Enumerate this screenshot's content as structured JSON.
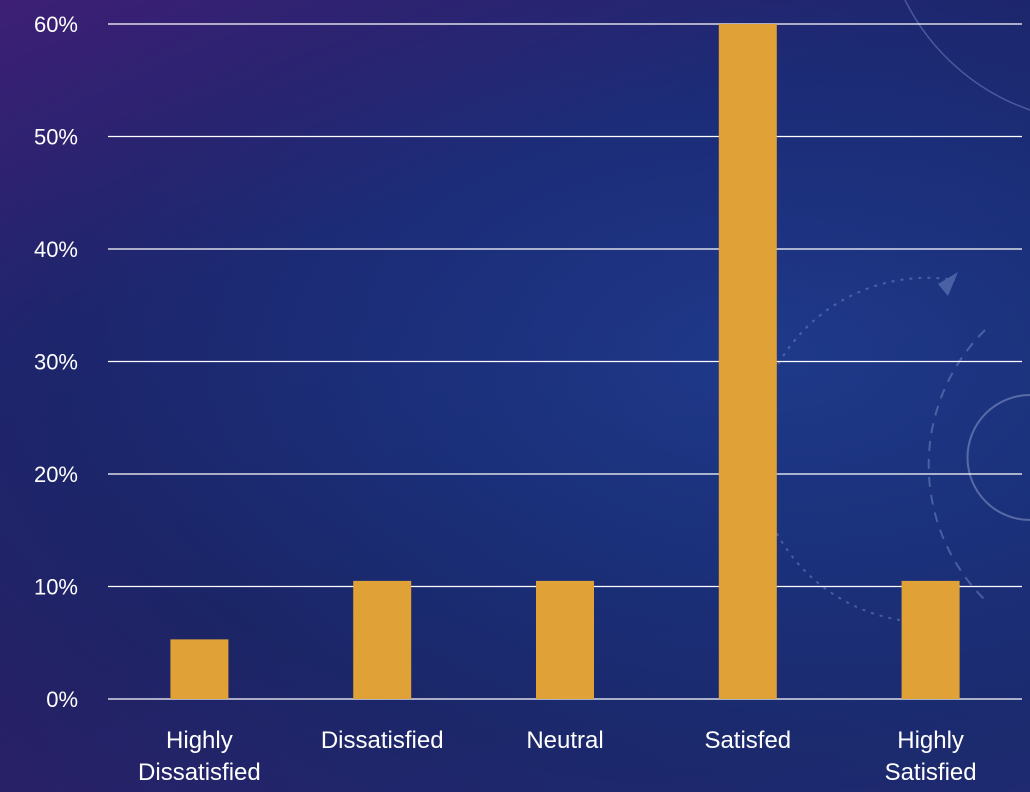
{
  "chart_data": {
    "type": "bar",
    "title": "",
    "xlabel": "",
    "ylabel": "",
    "categories": [
      [
        "Highly",
        "Dissatisfied"
      ],
      [
        "Dissatisfied"
      ],
      [
        "Neutral"
      ],
      [
        "Satisfed"
      ],
      [
        "Highly",
        "Satisfied"
      ]
    ],
    "values": [
      5.3,
      10.5,
      10.5,
      60,
      10.5
    ],
    "ylim": [
      0,
      60
    ],
    "yticks": [
      {
        "value": 0,
        "label": "0%"
      },
      {
        "value": 10,
        "label": "10%"
      },
      {
        "value": 20,
        "label": "20%"
      },
      {
        "value": 30,
        "label": "30%"
      },
      {
        "value": 40,
        "label": "40%"
      },
      {
        "value": 50,
        "label": "50%"
      },
      {
        "value": 60,
        "label": "60%"
      }
    ],
    "grid": true,
    "legend": "none",
    "bar_color": "#e0a136",
    "gridline_color": "#ffffff",
    "text_color": "#ffffff"
  }
}
